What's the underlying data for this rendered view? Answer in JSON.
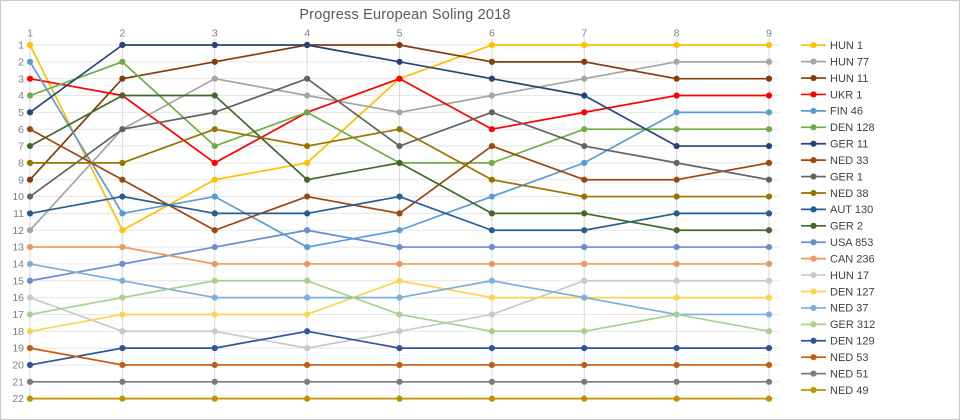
{
  "title": "Progress European Soling 2018",
  "chart_data": {
    "type": "line",
    "subtype": "bump-ranking",
    "title": "Progress European Soling 2018",
    "xlabel": "",
    "ylabel": "",
    "x": [
      1,
      2,
      3,
      4,
      5,
      6,
      7,
      8,
      9
    ],
    "x_axis_position": "top",
    "y_axis": {
      "min": 1,
      "max": 22,
      "inverted": true,
      "tick_step": 1
    },
    "grid": true,
    "legend_position": "right",
    "axis_text_color": "#7f7f7f",
    "grid_color_h": "#e6e6e6",
    "grid_color_v": "#d9d9d9",
    "series": [
      {
        "name": "HUN 1",
        "color": "#FFC000",
        "values": [
          1,
          12,
          9,
          8,
          3,
          1,
          1,
          1,
          1
        ]
      },
      {
        "name": "HUN 77",
        "color": "#A5A5A5",
        "values": [
          12,
          6,
          3,
          4,
          5,
          4,
          3,
          2,
          2
        ]
      },
      {
        "name": "HUN 11",
        "color": "#843C0C",
        "values": [
          9,
          3,
          2,
          1,
          1,
          2,
          2,
          3,
          3
        ]
      },
      {
        "name": "UKR 1",
        "color": "#FF0000",
        "values": [
          3,
          4,
          8,
          5,
          3,
          6,
          5,
          4,
          4
        ]
      },
      {
        "name": "FIN 46",
        "color": "#5B9BD5",
        "values": [
          2,
          11,
          10,
          13,
          12,
          10,
          8,
          5,
          5
        ]
      },
      {
        "name": "DEN 128",
        "color": "#70AD47",
        "values": [
          4,
          2,
          7,
          5,
          8,
          8,
          6,
          6,
          6
        ]
      },
      {
        "name": "GER 11",
        "color": "#264478",
        "values": [
          5,
          1,
          1,
          1,
          2,
          3,
          4,
          7,
          7
        ]
      },
      {
        "name": "NED 33",
        "color": "#9E480E",
        "values": [
          6,
          9,
          12,
          10,
          11,
          7,
          9,
          9,
          8
        ]
      },
      {
        "name": "GER 1",
        "color": "#636363",
        "values": [
          10,
          6,
          5,
          3,
          7,
          5,
          7,
          8,
          9
        ]
      },
      {
        "name": "NED 38",
        "color": "#997300",
        "values": [
          8,
          8,
          6,
          7,
          6,
          9,
          10,
          10,
          10
        ]
      },
      {
        "name": "AUT 130",
        "color": "#255E91",
        "values": [
          11,
          10,
          11,
          11,
          10,
          12,
          12,
          11,
          11
        ]
      },
      {
        "name": "GER 2",
        "color": "#43682B",
        "values": [
          7,
          4,
          4,
          9,
          8,
          11,
          11,
          12,
          12
        ]
      },
      {
        "name": "USA 853",
        "color": "#698ED0",
        "values": [
          15,
          14,
          13,
          12,
          13,
          13,
          13,
          13,
          13
        ]
      },
      {
        "name": "CAN 236",
        "color": "#F1975A",
        "values": [
          13,
          13,
          14,
          14,
          14,
          14,
          14,
          14,
          14
        ]
      },
      {
        "name": "HUN 17",
        "color": "#C9C9C9",
        "values": [
          16,
          18,
          18,
          19,
          18,
          17,
          15,
          15,
          15
        ]
      },
      {
        "name": "DEN 127",
        "color": "#FFD34D",
        "values": [
          18,
          17,
          17,
          17,
          15,
          16,
          16,
          16,
          16
        ]
      },
      {
        "name": "NED 37",
        "color": "#7CAFDD",
        "values": [
          14,
          15,
          16,
          16,
          16,
          15,
          16,
          17,
          17
        ]
      },
      {
        "name": "GER 312",
        "color": "#A9D18E",
        "values": [
          17,
          16,
          15,
          15,
          17,
          18,
          18,
          17,
          18
        ]
      },
      {
        "name": "DEN 129",
        "color": "#2F5597",
        "values": [
          20,
          19,
          19,
          18,
          19,
          19,
          19,
          19,
          19
        ]
      },
      {
        "name": "NED 53",
        "color": "#C55A11",
        "values": [
          19,
          20,
          20,
          20,
          20,
          20,
          20,
          20,
          20
        ]
      },
      {
        "name": "NED 51",
        "color": "#7B7B7B",
        "values": [
          21,
          21,
          21,
          21,
          21,
          21,
          21,
          21,
          21
        ]
      },
      {
        "name": "NED 49",
        "color": "#BF9000",
        "values": [
          22,
          22,
          22,
          22,
          22,
          22,
          22,
          22,
          22
        ]
      }
    ]
  }
}
